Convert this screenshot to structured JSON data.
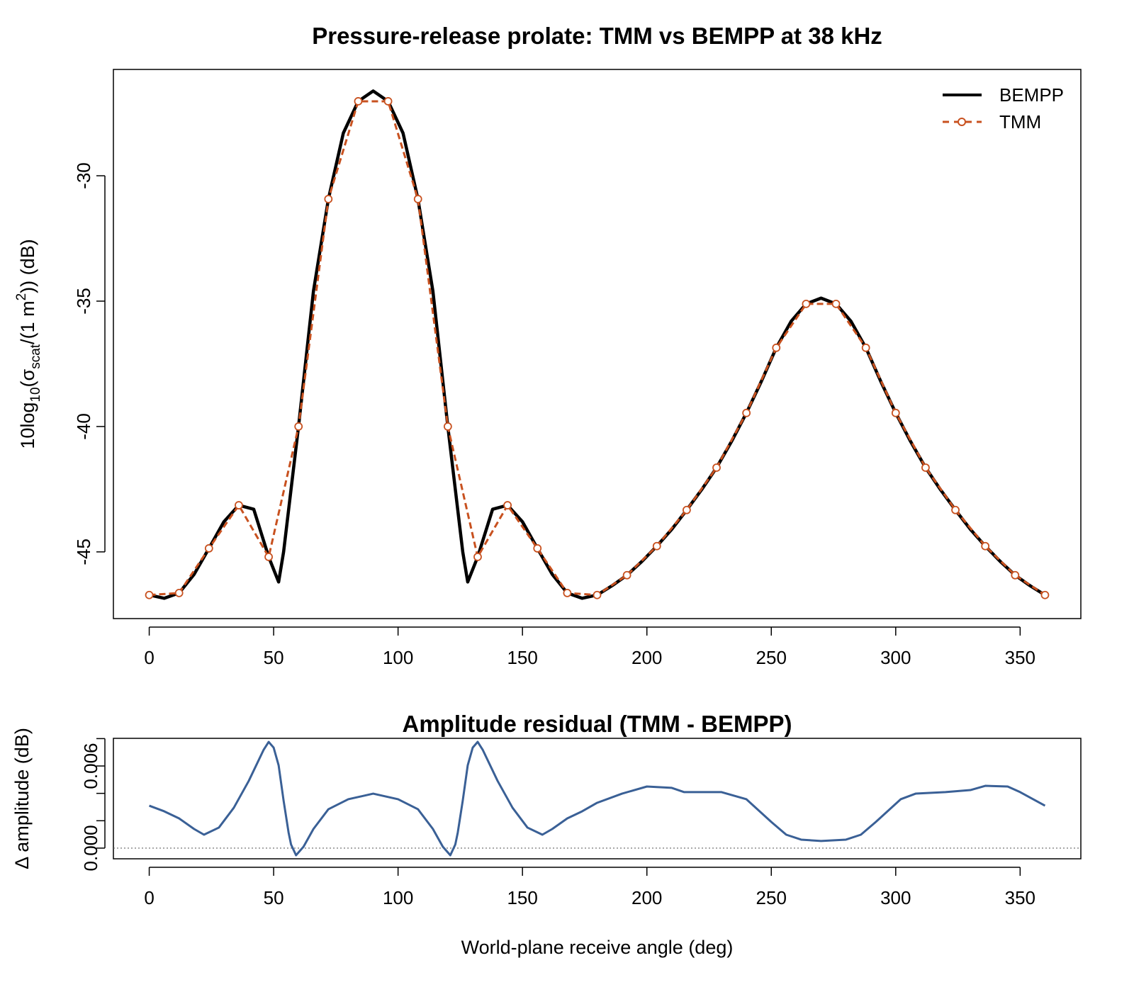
{
  "chart_data": [
    {
      "type": "line",
      "title": "Pressure-release prolate: TMM vs BEMPP at 38 kHz",
      "ylabel_parts": [
        "10log",
        "10",
        "(σ",
        "scat",
        "/(1 m",
        "2",
        ")) (dB)"
      ],
      "xlim": [
        -14.4,
        374.4
      ],
      "ylim": [
        -47.66,
        -25.76
      ],
      "xticks": [
        0,
        50,
        100,
        150,
        200,
        250,
        300,
        350
      ],
      "yticks": [
        -45,
        -40,
        -35,
        -30
      ],
      "legend": "topright",
      "series": [
        {
          "name": "BEMPP",
          "color": "#000000",
          "dashed": false,
          "markers": false,
          "x": [
            0,
            6,
            12,
            18,
            24,
            30,
            36,
            42,
            48,
            52,
            54,
            60,
            66,
            72,
            78,
            84,
            90,
            96,
            102,
            108,
            114,
            120,
            126,
            128,
            132,
            138,
            144,
            150,
            156,
            162,
            168,
            174,
            180,
            186,
            192,
            198,
            204,
            210,
            216,
            222,
            228,
            234,
            240,
            246,
            252,
            258,
            264,
            270,
            276,
            282,
            288,
            294,
            300,
            306,
            312,
            318,
            324,
            330,
            336,
            342,
            348,
            354,
            360
          ],
          "values": [
            -46.72,
            -46.85,
            -46.64,
            -45.9,
            -44.86,
            -43.8,
            -43.14,
            -43.3,
            -45.2,
            -46.2,
            -45.0,
            -40.0,
            -34.6,
            -30.93,
            -28.3,
            -27.03,
            -26.62,
            -27.03,
            -28.3,
            -30.93,
            -34.6,
            -40.0,
            -45.0,
            -46.2,
            -45.2,
            -43.3,
            -43.14,
            -43.8,
            -44.86,
            -45.9,
            -46.64,
            -46.85,
            -46.72,
            -46.35,
            -45.93,
            -45.38,
            -44.77,
            -44.1,
            -43.33,
            -42.52,
            -41.64,
            -40.6,
            -39.46,
            -38.2,
            -36.86,
            -35.8,
            -35.11,
            -34.88,
            -35.11,
            -35.8,
            -36.86,
            -38.2,
            -39.46,
            -40.6,
            -41.64,
            -42.52,
            -43.33,
            -44.1,
            -44.77,
            -45.38,
            -45.93,
            -46.35,
            -46.72
          ]
        },
        {
          "name": "TMM",
          "color": "#c8511f",
          "dashed": true,
          "markers": true,
          "x": [
            0,
            12,
            24,
            36,
            48,
            60,
            72,
            84,
            96,
            108,
            120,
            132,
            144,
            156,
            168,
            180,
            192,
            204,
            216,
            228,
            240,
            252,
            264,
            276,
            288,
            300,
            312,
            324,
            336,
            348,
            360
          ],
          "values": [
            -46.72,
            -46.64,
            -44.86,
            -43.14,
            -45.2,
            -40.0,
            -30.93,
            -27.03,
            -27.03,
            -30.93,
            -40.0,
            -45.2,
            -43.14,
            -44.86,
            -46.64,
            -46.72,
            -45.93,
            -44.77,
            -43.33,
            -41.64,
            -39.46,
            -36.86,
            -35.11,
            -35.11,
            -36.86,
            -39.46,
            -41.64,
            -43.33,
            -44.77,
            -45.93,
            -46.72
          ]
        }
      ]
    },
    {
      "type": "line",
      "title": "Amplitude residual (TMM - BEMPP)",
      "ylabel": "Δ amplitude (dB)",
      "xlabel": "World-plane receive angle (deg)",
      "xlim": [
        -14.4,
        374.4
      ],
      "ylim": [
        -0.00078,
        0.00802
      ],
      "xticks": [
        0,
        50,
        100,
        150,
        200,
        250,
        300,
        350
      ],
      "yticks": [
        {
          "value": 0,
          "label": "0.000"
        },
        {
          "value": 0.002,
          "label": null
        },
        {
          "value": 0.004,
          "label": null
        },
        {
          "value": 0.006,
          "label": "0.006"
        },
        {
          "value": 0.008,
          "label": null
        }
      ],
      "hline": 0,
      "series": [
        {
          "color": "#3a6096",
          "dashed": false,
          "markers": false,
          "x": [
            0,
            6,
            12,
            18,
            22,
            28,
            34,
            40,
            46,
            48,
            50,
            52,
            54,
            56,
            57,
            59,
            62,
            66,
            72,
            80,
            90,
            100,
            108,
            114,
            118,
            121,
            123,
            124,
            126,
            128,
            130,
            132,
            134,
            140,
            146,
            152,
            158,
            162,
            168,
            174,
            180,
            190,
            200,
            210,
            215,
            230,
            240,
            250,
            256,
            262,
            270,
            280,
            286,
            292,
            302,
            308,
            320,
            330,
            336,
            345,
            350,
            360
          ],
          "values": [
            0.0031,
            0.00269,
            0.00217,
            0.0014,
            0.00098,
            0.0015,
            0.00295,
            0.00491,
            0.00719,
            0.00776,
            0.00734,
            0.00605,
            0.00347,
            0.00114,
            0.00026,
            -0.00052,
            0.0001,
            0.0014,
            0.00284,
            0.00357,
            0.00398,
            0.00357,
            0.00284,
            0.0014,
            0.0001,
            -0.00052,
            0.00026,
            0.00114,
            0.00347,
            0.00605,
            0.00734,
            0.00776,
            0.00719,
            0.00491,
            0.00295,
            0.0015,
            0.00098,
            0.0014,
            0.00217,
            0.00269,
            0.00331,
            0.00398,
            0.0045,
            0.0044,
            0.00409,
            0.00409,
            0.00357,
            0.00191,
            0.00098,
            0.00062,
            0.00052,
            0.00062,
            0.00098,
            0.00191,
            0.00357,
            0.00398,
            0.00409,
            0.00424,
            0.00455,
            0.0045,
            0.00409,
            0.0031
          ]
        }
      ]
    }
  ]
}
